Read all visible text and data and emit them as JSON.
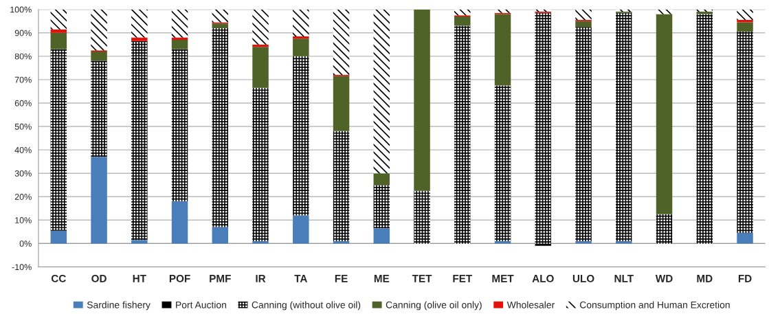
{
  "chart_data": {
    "type": "bar",
    "stacked": true,
    "categories": [
      "CC",
      "OD",
      "HT",
      "POF",
      "PMF",
      "IR",
      "TA",
      "FE",
      "ME",
      "TET",
      "FET",
      "MET",
      "ALO",
      "ULO",
      "NLT",
      "WD",
      "MD",
      "FD"
    ],
    "series": [
      {
        "name": "Sardine fishery",
        "color": "#4a7ebb",
        "values": [
          5.5,
          37,
          1.5,
          18,
          7,
          1,
          12,
          1,
          6.5,
          0,
          0,
          1,
          0,
          1,
          1,
          0,
          0,
          4.5
        ]
      },
      {
        "name": "Port Auction",
        "color": "#000000",
        "values": [
          0,
          0,
          0,
          0,
          0,
          0,
          0,
          0,
          0,
          0,
          0,
          0,
          -1,
          0,
          0,
          0,
          0,
          0
        ]
      },
      {
        "name": "Canning (without olive oil)",
        "color": "#ffffff",
        "values": [
          77.5,
          41,
          85,
          65,
          85,
          65.5,
          68,
          47,
          18.5,
          22.5,
          93,
          66.5,
          98.5,
          91.5,
          97.5,
          12.5,
          98,
          86
        ]
      },
      {
        "name": "Canning (olive oil only)",
        "color": "#4f6228",
        "values": [
          7,
          4,
          0,
          4,
          2,
          17.5,
          7.5,
          23.5,
          5,
          77.5,
          4,
          30.5,
          0,
          2.5,
          0.5,
          85.5,
          1,
          4
        ]
      },
      {
        "name": "Wholesaler",
        "color": "#e3120b",
        "values": [
          1.5,
          0.5,
          1.5,
          1,
          0.5,
          1,
          1,
          0.5,
          0,
          0,
          0.5,
          0.5,
          0.5,
          0.5,
          0,
          0,
          0,
          1
        ]
      },
      {
        "name": "Consumption and Human Excretion",
        "color": "#ffffff",
        "values": [
          8.5,
          17.5,
          12,
          12,
          5.5,
          15,
          11.5,
          28,
          70,
          0,
          2.5,
          1.5,
          1,
          4.5,
          1,
          2,
          1,
          4.5
        ]
      }
    ],
    "ylim": [
      -10,
      100
    ],
    "yticks": [
      {
        "value": -10,
        "label": "-10%"
      },
      {
        "value": 0,
        "label": "0%"
      },
      {
        "value": 10,
        "label": "10%"
      },
      {
        "value": 20,
        "label": "20%"
      },
      {
        "value": 30,
        "label": "30%"
      },
      {
        "value": 40,
        "label": "40%"
      },
      {
        "value": 50,
        "label": "50%"
      },
      {
        "value": 60,
        "label": "60%"
      },
      {
        "value": 70,
        "label": "70%"
      },
      {
        "value": 80,
        "label": "80%"
      },
      {
        "value": 90,
        "label": "90%"
      },
      {
        "value": 100,
        "label": "100%"
      }
    ],
    "grid": "y",
    "legend": "bottom"
  }
}
